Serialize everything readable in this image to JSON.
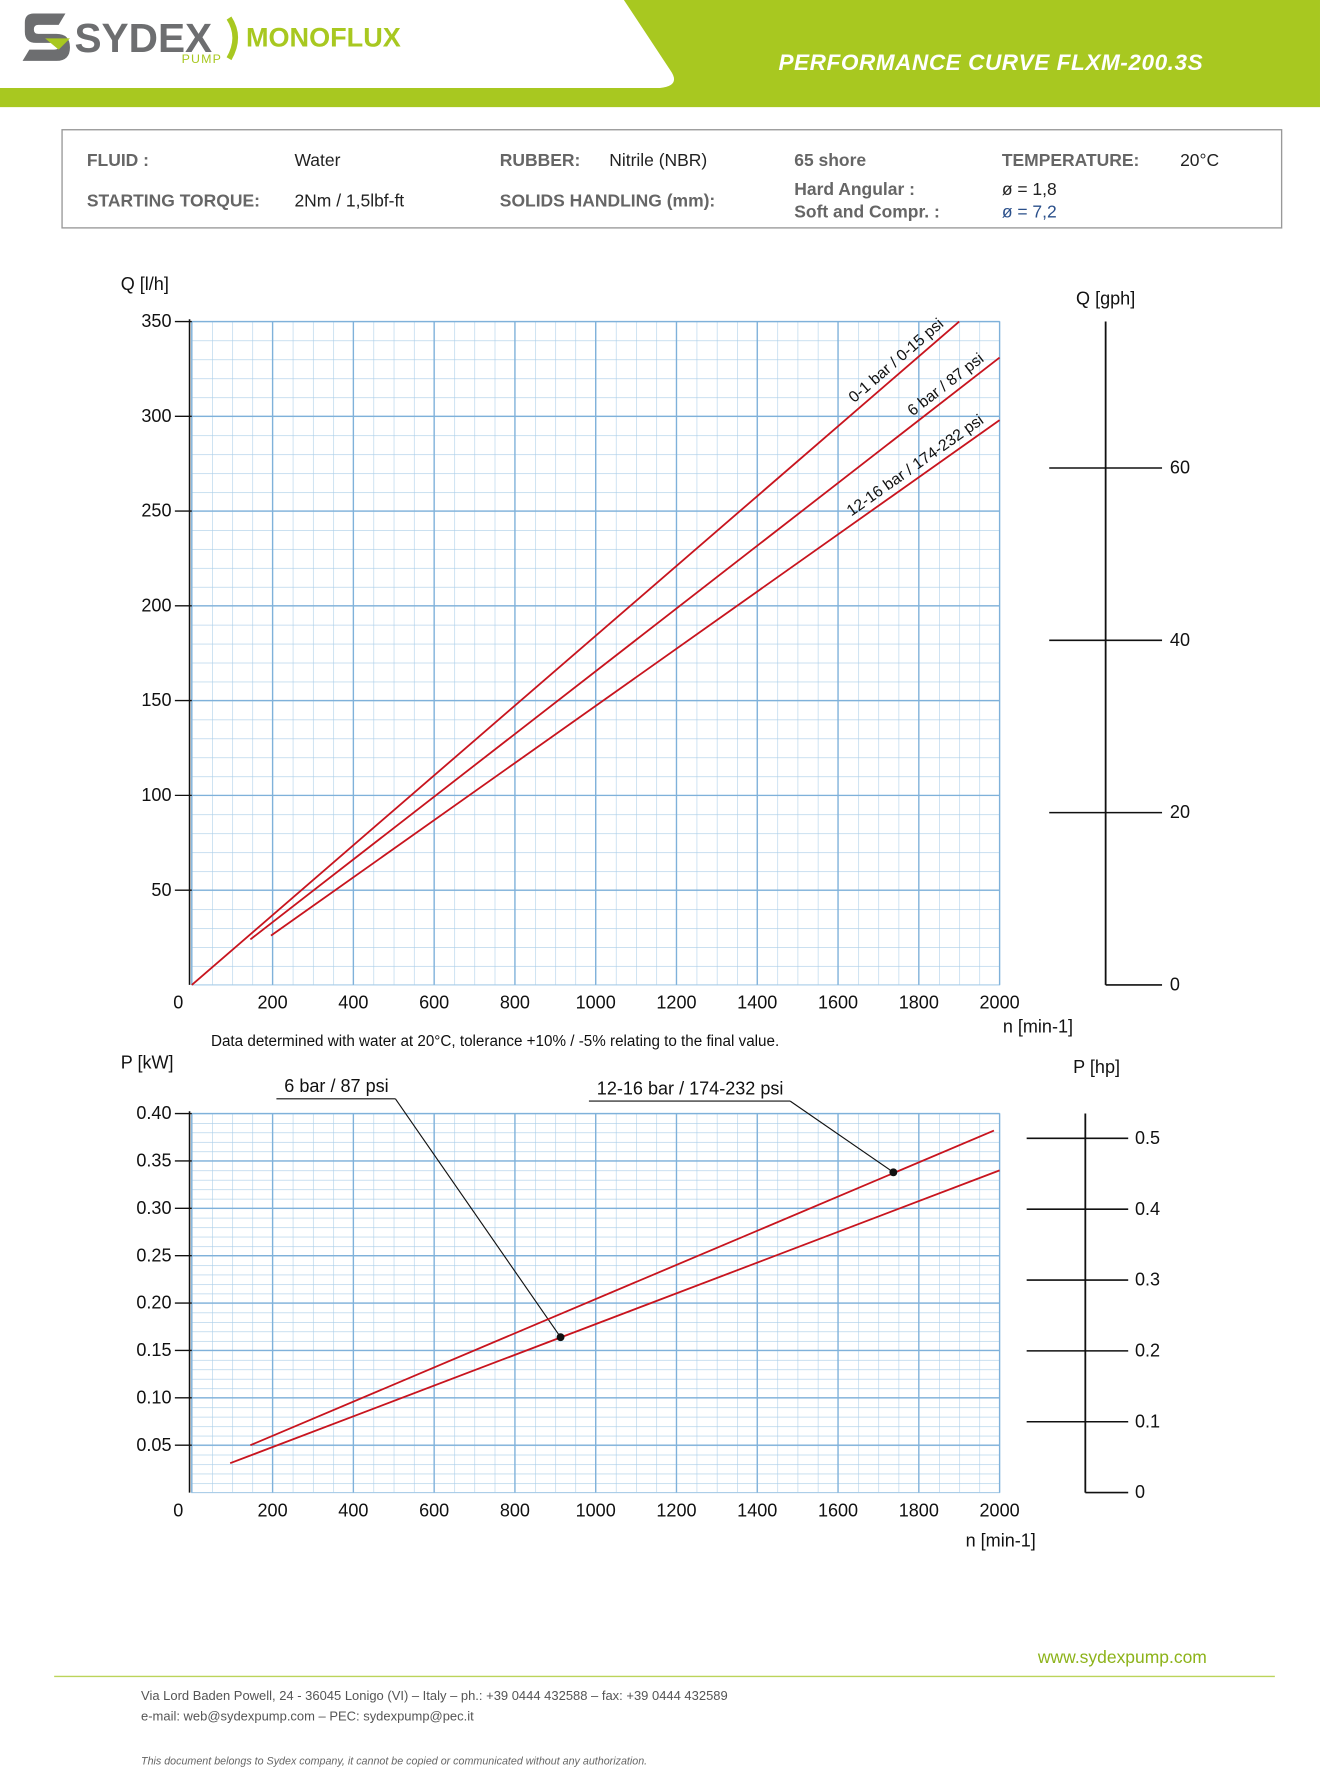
{
  "header": {
    "brand": "SYDEX",
    "brand_sub": "PUMP",
    "product": "MONOFLUX",
    "title": "PERFORMANCE CURVE FLXM-200.3S"
  },
  "info": {
    "fluid_label": "FLUID :",
    "fluid": "Water",
    "rubber_label": "RUBBER:",
    "rubber": "Nitrile (NBR)",
    "hardness": "65 shore",
    "temperature_label": "TEMPERATURE:",
    "temperature": "20°C",
    "torque_label": "STARTING TORQUE:",
    "torque": "2Nm / 1,5lbf-ft",
    "solids_label": "SOLIDS HANDLING (mm):",
    "hard_label": "Hard Angular :",
    "hard": "ø = 1,8",
    "soft_label": "Soft and Compr. :",
    "soft": "ø = 7,2"
  },
  "chart_data": [
    {
      "type": "line",
      "y_label": "Q [l/h]",
      "y2_label": "Q [gph]",
      "x_label": "n [min-1]",
      "grid": true,
      "xlim": [
        0,
        2000
      ],
      "xticks": [
        0,
        200,
        400,
        600,
        800,
        1000,
        1200,
        1400,
        1600,
        1800,
        2000
      ],
      "ylim": [
        0,
        350
      ],
      "yticks": [
        50,
        100,
        150,
        200,
        250,
        300,
        350
      ],
      "y2lim": [
        0,
        77
      ],
      "y2ticks": [
        0,
        20,
        40,
        60
      ],
      "series": [
        {
          "name": "0-1 bar / 0-15 psi",
          "color": "#c8141e",
          "x": [
            0,
            1900
          ],
          "values": [
            0,
            350
          ]
        },
        {
          "name": "6 bar / 87 psi",
          "color": "#c8141e",
          "x": [
            145,
            2000
          ],
          "values": [
            24,
            331
          ]
        },
        {
          "name": "12-16 bar / 174-232 psi",
          "color": "#c8141e",
          "x": [
            196,
            2000
          ],
          "values": [
            26,
            298
          ]
        }
      ]
    },
    {
      "type": "line",
      "y_label": "P [kW]",
      "y2_label": "P [hp]",
      "x_label": "n [min-1]",
      "grid": true,
      "xlim": [
        0,
        2000
      ],
      "xticks": [
        0,
        200,
        400,
        600,
        800,
        1000,
        1200,
        1400,
        1600,
        1800,
        2000
      ],
      "ylim": [
        0,
        0.4
      ],
      "yticks": [
        0.05,
        {
          "value": 0.1,
          "label": "0.10"
        },
        0.15,
        {
          "value": 0.2,
          "label": "0.20"
        },
        0.25,
        {
          "value": 0.3,
          "label": "0.30"
        },
        0.35,
        {
          "value": 0.4,
          "label": "0.40"
        }
      ],
      "y2lim": [
        0,
        0.535
      ],
      "y2ticks": [
        0,
        0.1,
        0.2,
        0.3,
        0.4,
        0.5
      ],
      "series": [
        {
          "name": "6 bar / 87 psi",
          "color": "#c8141e",
          "x": [
            95,
            2000
          ],
          "values": [
            0.031,
            0.34
          ],
          "marker": {
            "x": 913,
            "y": 0.164
          }
        },
        {
          "name": "12-16 bar / 174-232 psi",
          "color": "#c8141e",
          "x": [
            145,
            1986
          ],
          "values": [
            0.05,
            0.382
          ],
          "marker": {
            "x": 1737,
            "y": 0.338
          }
        }
      ]
    }
  ],
  "note": "Data determined with water at 20°C, tolerance +10% / -5% relating to the final value.",
  "footer": {
    "website": "www.sydexpump.com",
    "address": "Via Lord Baden Powell, 24 - 36045 Lonigo (VI) – Italy – ph.: +39 0444 432588 – fax: +39 0444 432589",
    "email": "e-mail: web@sydexpump.com – PEC: sydexpump@pec.it",
    "disclaimer": "This document belongs to Sydex company, it cannot be copied or communicated without any authorization."
  }
}
